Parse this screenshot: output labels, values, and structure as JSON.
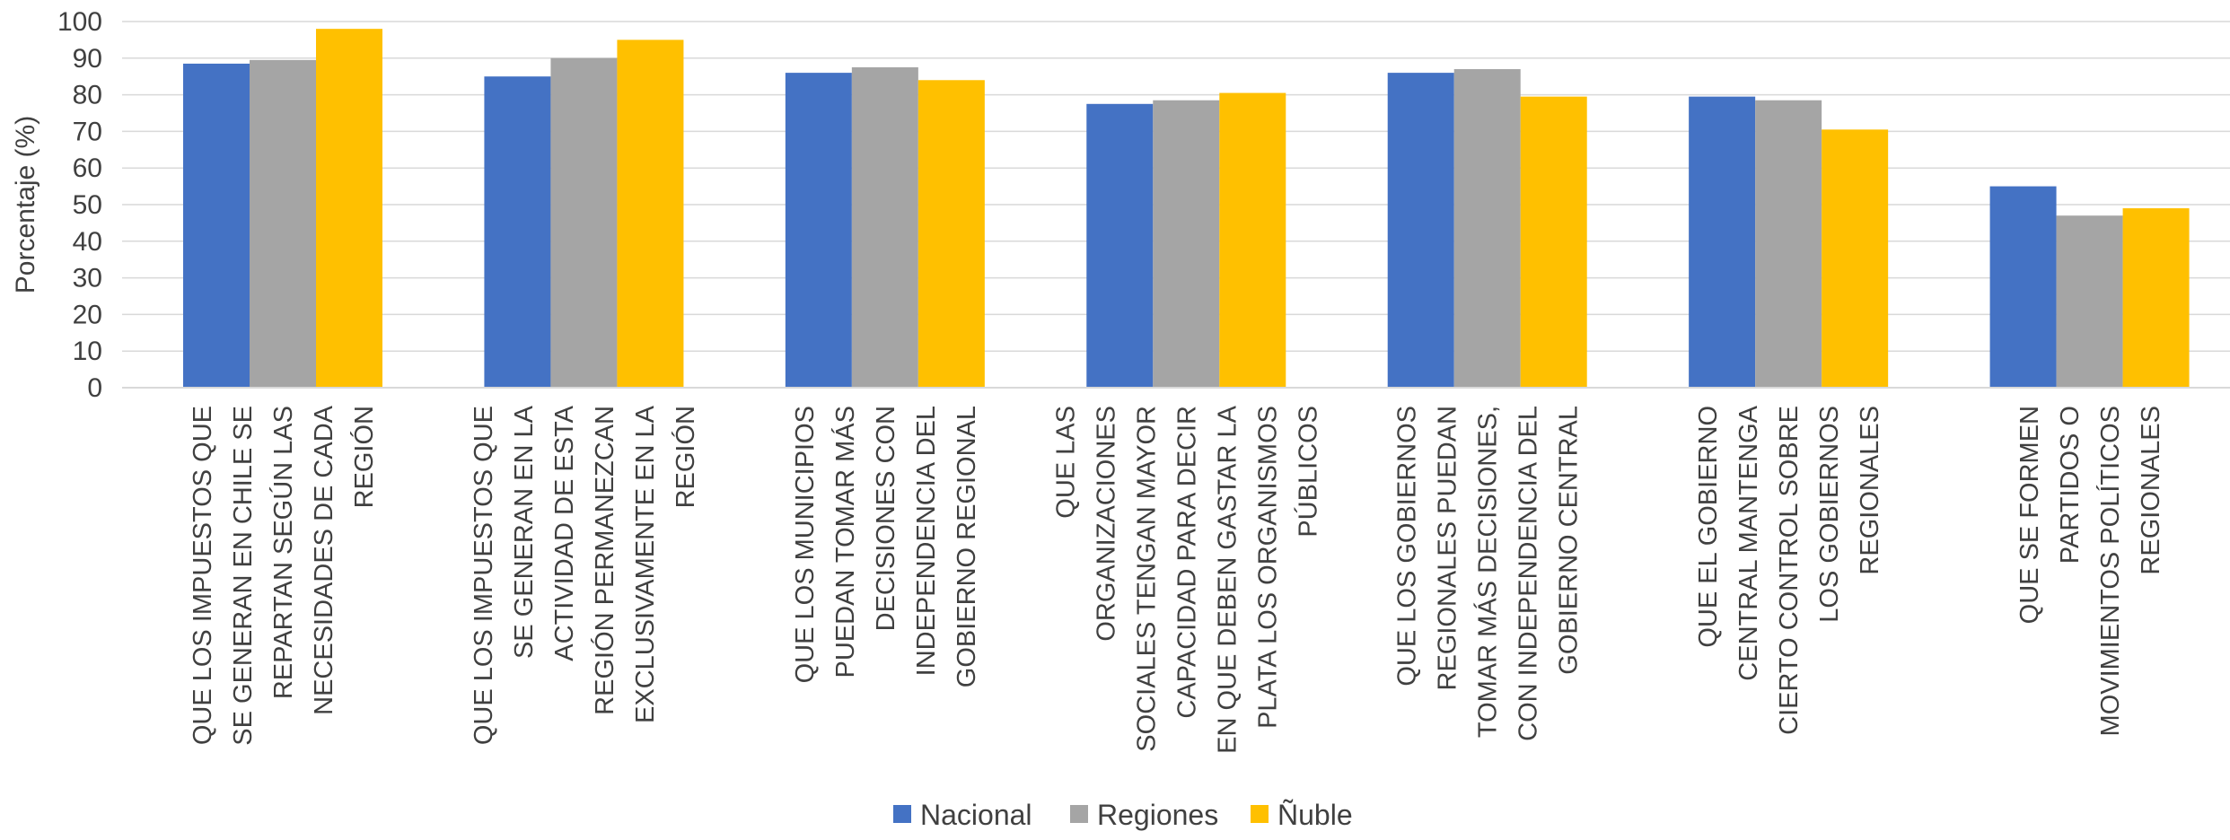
{
  "chart_data": {
    "type": "bar",
    "title": "",
    "xlabel": "",
    "ylabel": "Porcentaje (%)",
    "ylim": [
      0,
      100
    ],
    "yticks": [
      0,
      10,
      20,
      30,
      40,
      50,
      60,
      70,
      80,
      90,
      100
    ],
    "grid": true,
    "legend_position": "bottom",
    "categories": [
      [
        "QUE LOS IMPUESTOS QUE",
        "SE GENERAN EN CHILE SE",
        "REPARTAN SEGÚN LAS",
        "NECESIDADES DE CADA",
        "REGIÓN"
      ],
      [
        "QUE LOS IMPUESTOS QUE",
        "SE GENERAN EN LA",
        "ACTIVIDAD DE ESTA",
        "REGIÓN PERMANEZCAN",
        "EXCLUSIVAMENTE EN LA",
        "REGIÓN"
      ],
      [
        "QUE LOS MUNICIPIOS",
        "PUEDAN TOMAR MÁS",
        "DECISIONES CON",
        "INDEPENDENCIA DEL",
        "GOBIERNO REGIONAL"
      ],
      [
        "QUE LAS",
        "ORGANIZACIONES",
        "SOCIALES TENGAN MAYOR",
        "CAPACIDAD PARA DECIR",
        "EN QUE DEBEN GASTAR LA",
        "PLATA LOS ORGANISMOS",
        "PÚBLICOS"
      ],
      [
        "QUE LOS GOBIERNOS",
        "REGIONALES PUEDAN",
        "TOMAR MÁS DECISIONES,",
        "CON INDEPENDENCIA DEL",
        "GOBIERNO CENTRAL"
      ],
      [
        "QUE EL GOBIERNO",
        "CENTRAL MANTENGA",
        "CIERTO CONTROL SOBRE",
        "LOS GOBIERNOS",
        "REGIONALES"
      ],
      [
        "QUE SE FORMEN",
        "PARTIDOS O",
        "MOVIMIENTOS POLÍTICOS",
        "REGIONALES"
      ]
    ],
    "series": [
      {
        "name": "Nacional",
        "color": "#4472C4",
        "values": [
          88.5,
          85,
          86,
          77.5,
          86,
          79.5,
          55
        ]
      },
      {
        "name": "Regiones",
        "color": "#A5A5A5",
        "values": [
          89.5,
          90,
          87.5,
          78.5,
          87,
          78.5,
          47
        ]
      },
      {
        "name": "Ñuble",
        "color": "#FFC000",
        "values": [
          98,
          95,
          84,
          80.5,
          79.5,
          70.5,
          49
        ]
      }
    ]
  }
}
